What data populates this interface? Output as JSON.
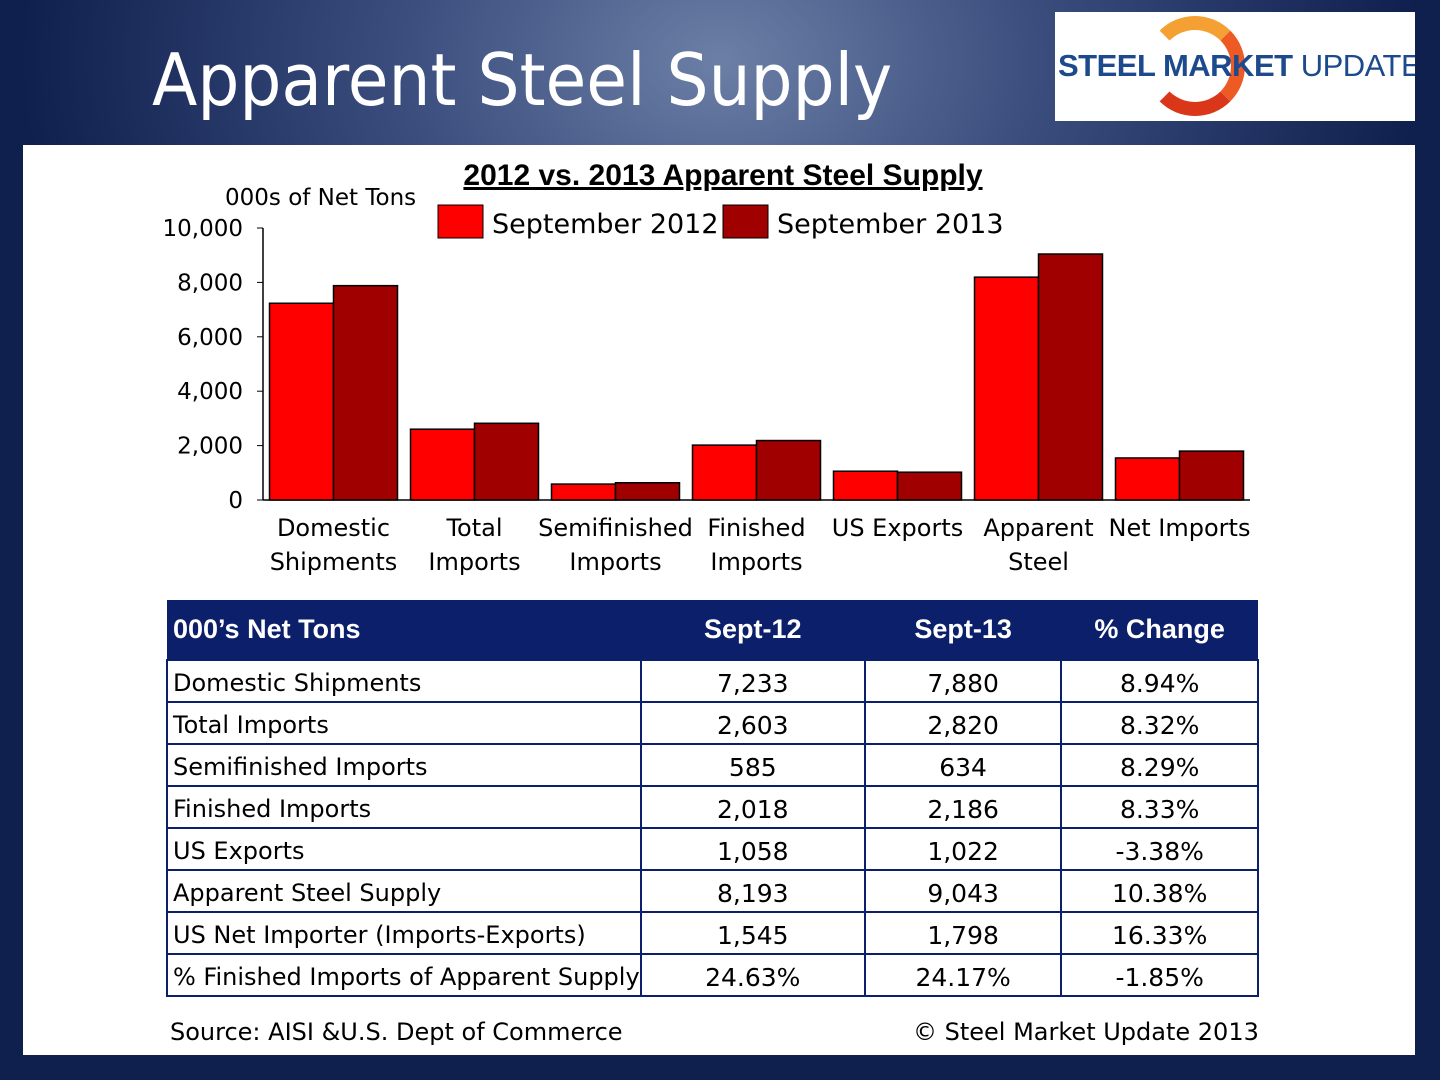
{
  "slide_title": "Apparent Steel Supply",
  "logo": {
    "bold": "STEEL MARKET",
    "light": "UPDATE"
  },
  "chart_data": {
    "type": "bar",
    "title": "2012 vs. 2013 Apparent Steel Supply",
    "ylabel": "000s of Net Tons",
    "ylim": [
      0,
      10000
    ],
    "yticks": [
      "0",
      "2,000",
      "4,000",
      "6,000",
      "8,000",
      "10,000"
    ],
    "categories": [
      [
        "Domestic",
        "Shipments"
      ],
      [
        "Total",
        "Imports"
      ],
      [
        "Semifinished",
        "Imports"
      ],
      [
        "Finished",
        "Imports"
      ],
      [
        "US Exports"
      ],
      [
        "Apparent",
        "Steel"
      ],
      [
        "Net Imports"
      ]
    ],
    "series": [
      {
        "name": "September 2012",
        "color": "#ff0000",
        "values": [
          7233,
          2603,
          585,
          2018,
          1058,
          8193,
          1545
        ]
      },
      {
        "name": "September 2013",
        "color": "#a00000",
        "values": [
          7880,
          2820,
          634,
          2186,
          1022,
          9043,
          1798
        ]
      }
    ],
    "legend": "top"
  },
  "table": {
    "headers": [
      "000’s Net Tons",
      "Sept-12",
      "Sept-13",
      "% Change"
    ],
    "rows": [
      [
        "Domestic Shipments",
        "7,233",
        "7,880",
        "8.94%"
      ],
      [
        "Total Imports",
        "2,603",
        "2,820",
        "8.32%"
      ],
      [
        "Semifinished Imports",
        "585",
        "634",
        "8.29%"
      ],
      [
        "Finished Imports",
        "2,018",
        "2,186",
        "8.33%"
      ],
      [
        "US Exports",
        "1,058",
        "1,022",
        "-3.38%"
      ],
      [
        "Apparent Steel Supply",
        "8,193",
        "9,043",
        "10.38%"
      ],
      [
        "US Net Importer (Imports-Exports)",
        "1,545",
        "1,798",
        "16.33%"
      ],
      [
        "% Finished Imports of Apparent Supply",
        "24.63%",
        "24.17%",
        "-1.85%"
      ]
    ]
  },
  "footer": {
    "source": "Source:  AISI &U.S. Dept of Commerce",
    "copyright": "©   Steel Market Update 2013"
  }
}
